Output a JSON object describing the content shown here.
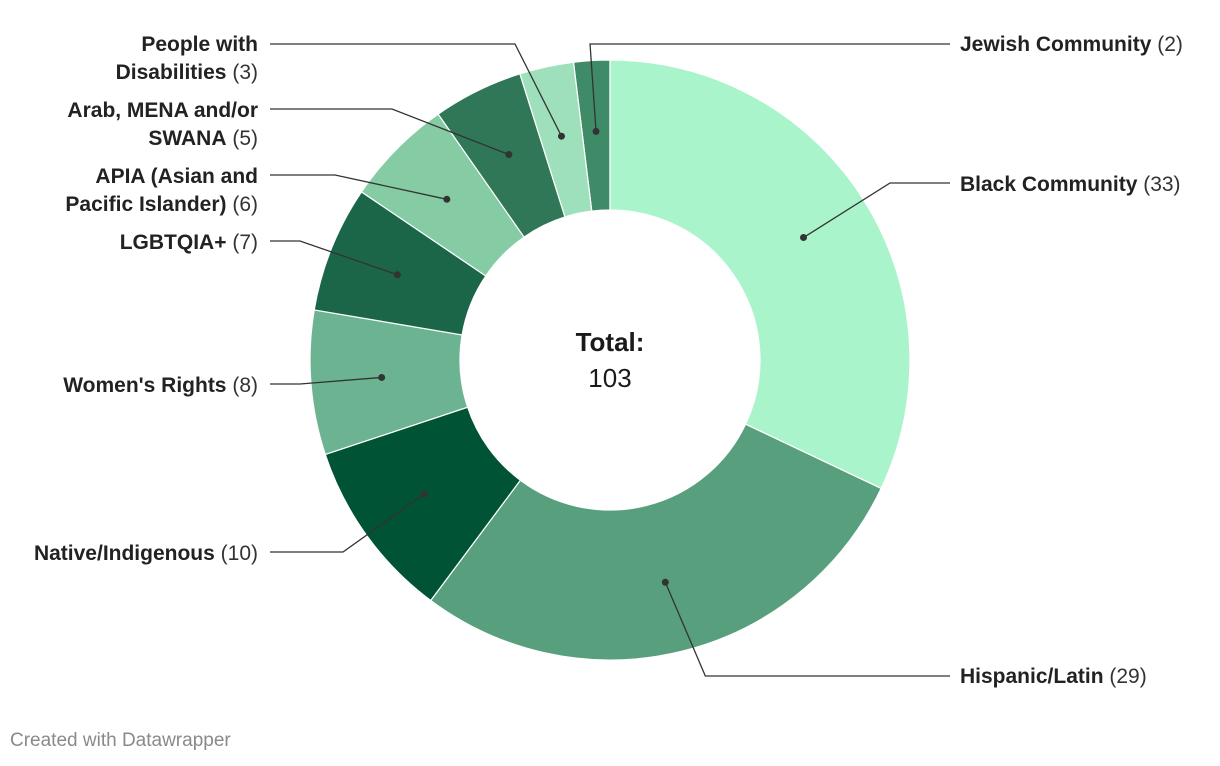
{
  "chart_data": {
    "type": "pie",
    "variant": "donut",
    "center": {
      "title": "Total:",
      "value": "103"
    },
    "slices": [
      {
        "label": "Jewish Community",
        "value": 2,
        "value_text": "(2)",
        "color": "#3f8a67"
      },
      {
        "label": "Black Community",
        "value": 33,
        "value_text": "(33)",
        "color": "#aaf4cc"
      },
      {
        "label": "Hispanic/Latin",
        "value": 29,
        "value_text": "(29)",
        "color": "#589f7e"
      },
      {
        "label": "Native/Indigenous",
        "value": 10,
        "value_text": "(10)",
        "color": "#005334"
      },
      {
        "label": "Women's Rights",
        "value": 8,
        "value_text": "(8)",
        "color": "#6cb391"
      },
      {
        "label": "LGBTQIA+",
        "value": 7,
        "value_text": "(7)",
        "color": "#1b6648"
      },
      {
        "label": "APIA (Asian and Pacific Islander)",
        "lines": [
          "APIA (Asian and",
          "Pacific Islander)"
        ],
        "value": 6,
        "value_text": "(6)",
        "color": "#85cba3"
      },
      {
        "label": "Arab, MENA and/or SWANA",
        "lines": [
          "Arab, MENA and/or",
          "SWANA"
        ],
        "value": 5,
        "value_text": "(5)",
        "color": "#2f7757"
      },
      {
        "label": "People with Disabilities",
        "lines": [
          "People with",
          "Disabilities"
        ],
        "value": 3,
        "value_text": "(3)",
        "color": "#9fe0bc"
      }
    ],
    "legend": "none",
    "labels": "outside with leader lines"
  },
  "credit": "Created with Datawrapper"
}
